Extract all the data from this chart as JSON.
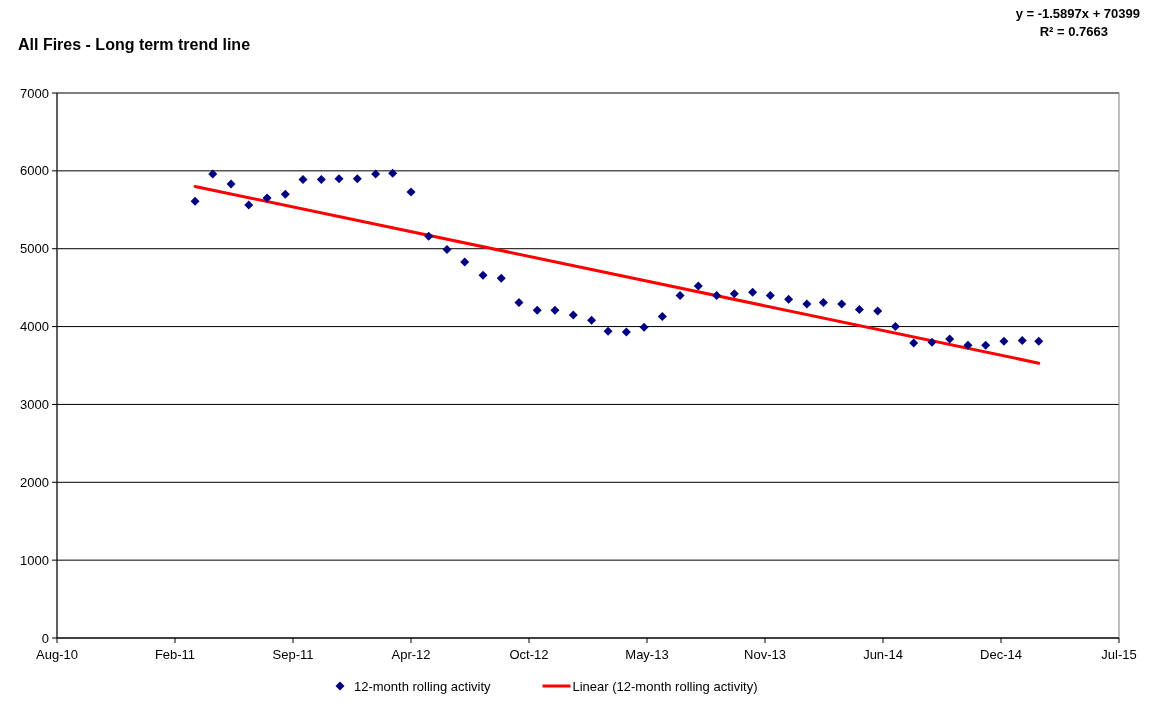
{
  "chart_data": {
    "type": "scatter",
    "title": "All Fires - Long term trend line",
    "annotations": [
      "y = -1.5897x + 70399",
      "R² = 0.7663"
    ],
    "xlim": [
      "2010-08-10",
      "2015-07-15"
    ],
    "xticks": [
      {
        "value": "2010-08-10",
        "label": "Aug-10"
      },
      {
        "value": "2011-02-26",
        "label": "Feb-11"
      },
      {
        "value": "2011-09-14",
        "label": "Sep-11"
      },
      {
        "value": "2012-04-01",
        "label": "Apr-12"
      },
      {
        "value": "2012-10-18",
        "label": "Oct-12"
      },
      {
        "value": "2013-05-06",
        "label": "May-13"
      },
      {
        "value": "2013-11-22",
        "label": "Nov-13"
      },
      {
        "value": "2014-06-10",
        "label": "Jun-14"
      },
      {
        "value": "2014-12-27",
        "label": "Dec-14"
      },
      {
        "value": "2015-07-15",
        "label": "Jul-15"
      }
    ],
    "ylim": [
      0,
      7000
    ],
    "yticks": [
      0,
      1000,
      2000,
      3000,
      4000,
      5000,
      6000,
      7000
    ],
    "grid": "y",
    "legend": "bottom",
    "series": [
      {
        "name": "12-month rolling activity",
        "marker": "diamond",
        "color": "#000080",
        "x": [
          "2011-04",
          "2011-05",
          "2011-06",
          "2011-07",
          "2011-08",
          "2011-09",
          "2011-10",
          "2011-11",
          "2011-12",
          "2012-01",
          "2012-02",
          "2012-03",
          "2012-04",
          "2012-05",
          "2012-06",
          "2012-07",
          "2012-08",
          "2012-09",
          "2012-10",
          "2012-11",
          "2012-12",
          "2013-01",
          "2013-02",
          "2013-03",
          "2013-04",
          "2013-05",
          "2013-06",
          "2013-07",
          "2013-08",
          "2013-09",
          "2013-10",
          "2013-11",
          "2013-12",
          "2014-01",
          "2014-02",
          "2014-03",
          "2014-04",
          "2014-05",
          "2014-06",
          "2014-07",
          "2014-08",
          "2014-09",
          "2014-10",
          "2014-11",
          "2014-12",
          "2015-01",
          "2015-02",
          "2015-03"
        ],
        "values": [
          5610,
          5960,
          5830,
          5560,
          5650,
          5700,
          5890,
          5890,
          5900,
          5900,
          5960,
          5970,
          5730,
          5160,
          4990,
          4830,
          4660,
          4620,
          4310,
          4210,
          4210,
          4150,
          4080,
          3940,
          3930,
          3990,
          4130,
          4400,
          4520,
          4400,
          4420,
          4440,
          4400,
          4350,
          4290,
          4310,
          4290,
          4220,
          4200,
          4000,
          3790,
          3800,
          3840,
          3760,
          3760,
          3810,
          3820,
          3810
        ]
      },
      {
        "name": "Linear (12-month rolling activity)",
        "type": "line",
        "marker": "none",
        "color": "#ff0000",
        "x": [
          "2011-04",
          "2015-03"
        ],
        "values": [
          5800,
          3530
        ]
      }
    ]
  }
}
